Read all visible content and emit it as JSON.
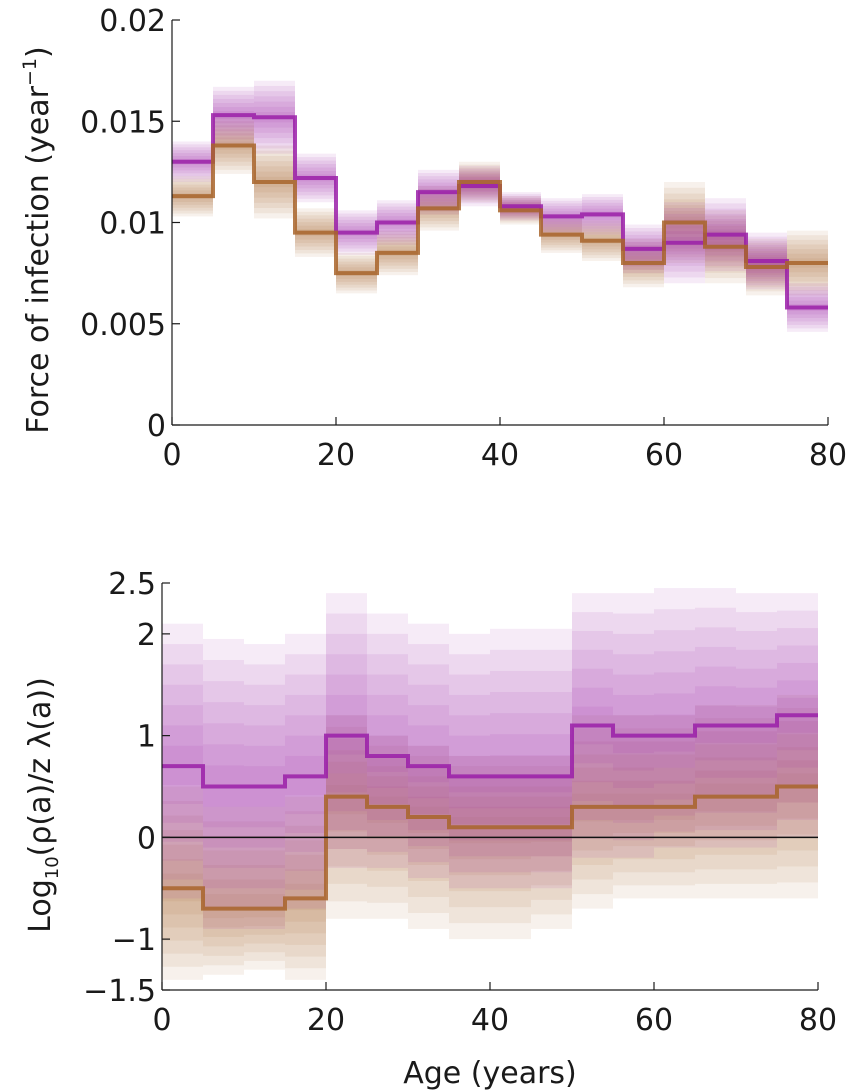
{
  "colors": {
    "purple": "#9a1fa8",
    "brown": "#a8642a",
    "axis": "#1a1a1a"
  },
  "xlabel": "Age (years)",
  "chart_data": [
    {
      "type": "line",
      "ylabel_prefix": "Force of infection (year",
      "ylabel_sup": "−1",
      "ylabel_suffix": ")",
      "xlim": [
        0,
        80
      ],
      "ylim": [
        0,
        0.02
      ],
      "xticks": [
        {
          "v": 0,
          "label": "0"
        },
        {
          "v": 20,
          "label": "20"
        },
        {
          "v": 40,
          "label": "40"
        },
        {
          "v": 60,
          "label": "60"
        },
        {
          "v": 80,
          "label": "80"
        }
      ],
      "yticks": [
        {
          "v": 0,
          "label": "0"
        },
        {
          "v": 0.005,
          "label": "0.005"
        },
        {
          "v": 0.01,
          "label": "0.01"
        },
        {
          "v": 0.015,
          "label": "0.015"
        },
        {
          "v": 0.02,
          "label": "0.02"
        }
      ],
      "age_bins": [
        0,
        5,
        10,
        15,
        20,
        25,
        30,
        35,
        40,
        45,
        50,
        55,
        60,
        65,
        70,
        75,
        80
      ],
      "series": [
        {
          "values": [
            0.013,
            0.0153,
            0.0152,
            0.0122,
            0.0095,
            0.01,
            0.0115,
            0.0118,
            0.0108,
            0.0103,
            0.0104,
            0.0087,
            0.009,
            0.0094,
            0.0081,
            0.0058
          ],
          "spread": [
            0.001,
            0.0014,
            0.0018,
            0.0012,
            0.0011,
            0.0011,
            0.0011,
            0.001,
            0.0007,
            0.0009,
            0.001,
            0.0012,
            0.002,
            0.0018,
            0.0014,
            0.0012
          ]
        },
        {
          "values": [
            0.0113,
            0.0138,
            0.012,
            0.0095,
            0.0075,
            0.0085,
            0.0107,
            0.012,
            0.0106,
            0.0094,
            0.0091,
            0.008,
            0.01,
            0.0088,
            0.0078,
            0.008
          ],
          "spread": [
            0.001,
            0.0014,
            0.0018,
            0.0012,
            0.001,
            0.0011,
            0.0011,
            0.001,
            0.0007,
            0.0009,
            0.001,
            0.0012,
            0.002,
            0.0018,
            0.0014,
            0.0016
          ]
        }
      ]
    },
    {
      "type": "line",
      "ylabel_main": "Log",
      "ylabel_sub": "10",
      "ylabel_rest": "(ρ(a)/z λ(a))",
      "xlim": [
        0,
        80
      ],
      "ylim": [
        -1.5,
        2.5
      ],
      "reference_line_y": 0,
      "xticks": [
        {
          "v": 0,
          "label": "0"
        },
        {
          "v": 20,
          "label": "20"
        },
        {
          "v": 40,
          "label": "40"
        },
        {
          "v": 60,
          "label": "60"
        },
        {
          "v": 80,
          "label": "80"
        }
      ],
      "yticks": [
        {
          "v": -1.5,
          "label": "−1.5"
        },
        {
          "v": -1,
          "label": "−1"
        },
        {
          "v": 0,
          "label": "0"
        },
        {
          "v": 1,
          "label": "1"
        },
        {
          "v": 2,
          "label": "2"
        },
        {
          "v": 2.5,
          "label": "2.5"
        }
      ],
      "age_bins": [
        0,
        5,
        10,
        15,
        20,
        25,
        30,
        35,
        40,
        45,
        50,
        55,
        60,
        65,
        70,
        75,
        80
      ],
      "series": [
        {
          "values": [
            0.7,
            0.5,
            0.5,
            0.6,
            1.0,
            0.8,
            0.7,
            0.6,
            0.6,
            0.6,
            1.1,
            1.0,
            1.0,
            1.1,
            1.1,
            1.2
          ],
          "range": [
            [
              -0.6,
              2.1
            ],
            [
              -0.9,
              1.95
            ],
            [
              -0.9,
              1.9
            ],
            [
              -0.7,
              2.0
            ],
            [
              -0.3,
              2.4
            ],
            [
              -0.3,
              2.2
            ],
            [
              -0.4,
              2.1
            ],
            [
              -0.5,
              2.0
            ],
            [
              -0.5,
              2.05
            ],
            [
              -0.5,
              2.05
            ],
            [
              -0.2,
              2.4
            ],
            [
              -0.2,
              2.4
            ],
            [
              -0.1,
              2.45
            ],
            [
              -0.1,
              2.45
            ],
            [
              -0.1,
              2.4
            ],
            [
              0.0,
              2.4
            ]
          ]
        },
        {
          "values": [
            -0.5,
            -0.7,
            -0.7,
            -0.6,
            0.4,
            0.3,
            0.2,
            0.1,
            0.1,
            0.1,
            0.3,
            0.3,
            0.3,
            0.4,
            0.4,
            0.5
          ],
          "range": [
            [
              -1.4,
              0.5
            ],
            [
              -1.35,
              0.3
            ],
            [
              -1.3,
              0.3
            ],
            [
              -1.4,
              0.4
            ],
            [
              -0.8,
              1.2
            ],
            [
              -0.8,
              1.0
            ],
            [
              -0.9,
              0.9
            ],
            [
              -1.0,
              0.8
            ],
            [
              -1.0,
              0.8
            ],
            [
              -0.9,
              0.8
            ],
            [
              -0.7,
              1.2
            ],
            [
              -0.6,
              1.2
            ],
            [
              -0.6,
              1.2
            ],
            [
              -0.6,
              1.3
            ],
            [
              -0.6,
              1.3
            ],
            [
              -0.6,
              1.4
            ]
          ]
        }
      ]
    }
  ]
}
